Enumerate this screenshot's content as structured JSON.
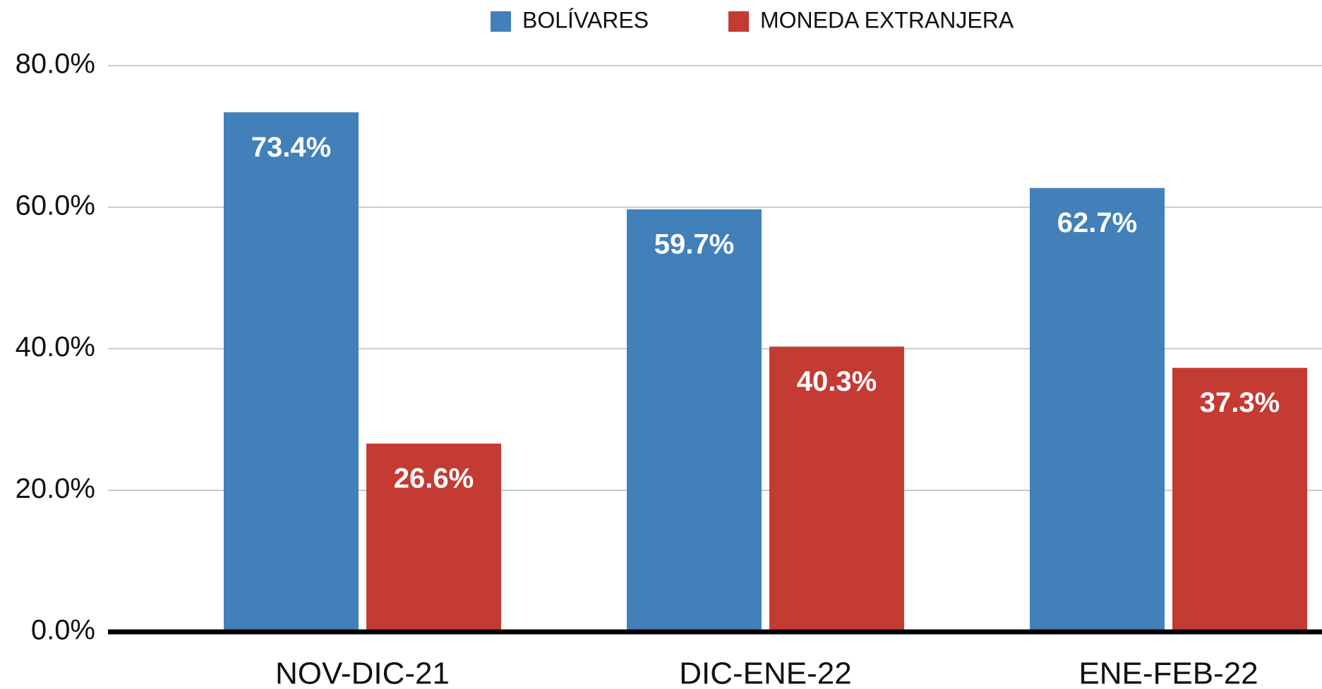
{
  "chart_data": {
    "type": "bar",
    "categories": [
      "NOV-DIC-21",
      "DIC-ENE-22",
      "ENE-FEB-22"
    ],
    "series": [
      {
        "name": "BOLÍVARES",
        "color": "#4280ba",
        "values": [
          73.4,
          59.7,
          62.7
        ],
        "value_labels": [
          "73.4%",
          "59.7%",
          "62.7%"
        ]
      },
      {
        "name": "MONEDA EXTRANJERA",
        "color": "#c33b33",
        "values": [
          26.6,
          40.3,
          37.3
        ],
        "value_labels": [
          "26.6%",
          "40.3%",
          "37.3%"
        ]
      }
    ],
    "ylim": [
      0,
      80
    ],
    "yticks": [
      {
        "value": 0,
        "label": "0.0%"
      },
      {
        "value": 20,
        "label": "20.0%"
      },
      {
        "value": 40,
        "label": "40.0%"
      },
      {
        "value": 60,
        "label": "60.0%"
      },
      {
        "value": 80,
        "label": "80.0%"
      }
    ],
    "grid": true,
    "legend": "top"
  }
}
